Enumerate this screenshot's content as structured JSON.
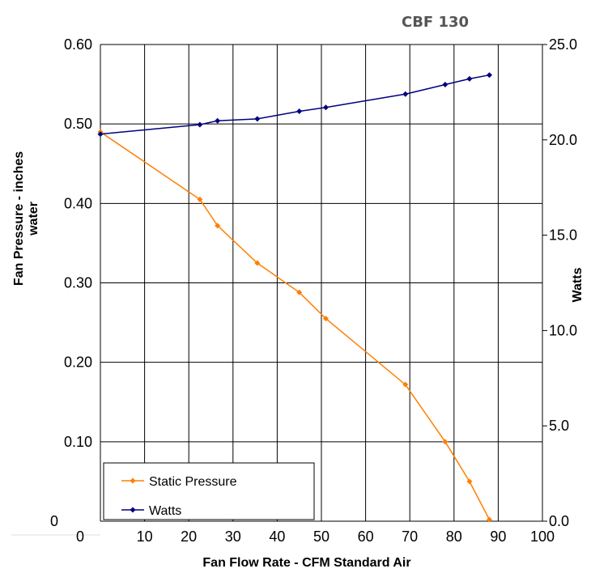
{
  "chart_data": {
    "type": "line",
    "title": "CBF 130",
    "xlabel": "Fan Flow Rate - CFM Standard Air",
    "ylabel_left": [
      "Fan Pressure - inches",
      "water"
    ],
    "ylabel_right": "Watts",
    "x_ticks": [
      "0",
      "10",
      "20",
      "30",
      "40",
      "50",
      "60",
      "70",
      "80",
      "90",
      "100"
    ],
    "y_left_ticks": [
      "0",
      "0.10",
      "0.20",
      "0.30",
      "0.40",
      "0.50",
      "0.60"
    ],
    "y_right_ticks": [
      "0.0",
      "5.0",
      "10.0",
      "15.0",
      "20.0",
      "25.0"
    ],
    "xlim": [
      0,
      100
    ],
    "ylim_left": [
      0,
      0.6
    ],
    "ylim_right": [
      0,
      25
    ],
    "grid": true,
    "legend_position": "bottom-left",
    "series": [
      {
        "name": "Static Pressure",
        "axis": "left",
        "color": "#ff7f00",
        "marker": "diamond",
        "points": [
          [
            0,
            0.49
          ],
          [
            22.5,
            0.405
          ],
          [
            26.5,
            0.372
          ],
          [
            35.5,
            0.325
          ],
          [
            45,
            0.288
          ],
          [
            51,
            0.255
          ],
          [
            69,
            0.172
          ],
          [
            78,
            0.1
          ],
          [
            83.5,
            0.05
          ],
          [
            88,
            0.002
          ]
        ]
      },
      {
        "name": "Watts",
        "axis": "right",
        "color": "#00007f",
        "marker": "diamond",
        "points": [
          [
            0,
            20.3
          ],
          [
            22.5,
            20.8
          ],
          [
            26.5,
            21.0
          ],
          [
            35.5,
            21.1
          ],
          [
            45,
            21.5
          ],
          [
            51,
            21.7
          ],
          [
            69,
            22.4
          ],
          [
            78,
            22.9
          ],
          [
            83.5,
            23.2
          ],
          [
            88,
            23.4
          ]
        ]
      }
    ]
  }
}
